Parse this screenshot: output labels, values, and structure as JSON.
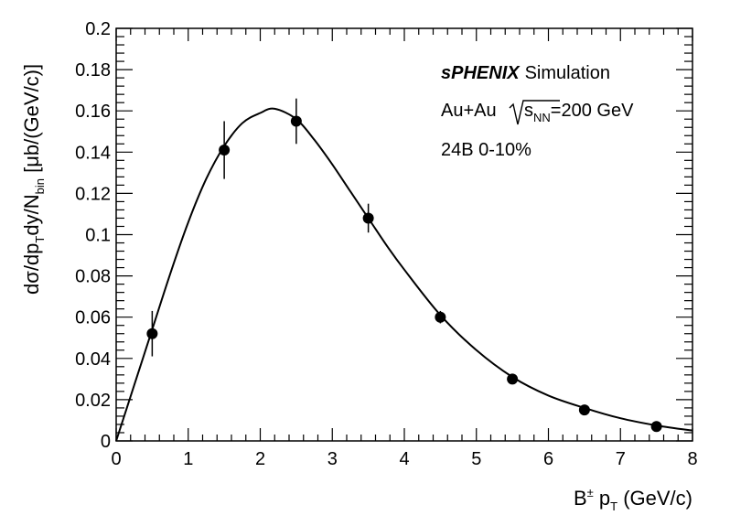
{
  "chart_data": {
    "type": "scatter",
    "x": [
      0.5,
      1.5,
      2.5,
      3.5,
      4.5,
      5.5,
      6.5,
      7.5
    ],
    "y": [
      0.052,
      0.141,
      0.155,
      0.108,
      0.06,
      0.03,
      0.015,
      0.007
    ],
    "y_err": [
      0.011,
      0.014,
      0.011,
      0.007,
      0.003,
      0.0015,
      0.001,
      0.0006
    ],
    "fit_curve": {
      "x": [
        0,
        0.25,
        0.5,
        0.75,
        1.0,
        1.25,
        1.5,
        1.75,
        2.0,
        2.2,
        2.5,
        2.75,
        3.0,
        3.25,
        3.5,
        3.75,
        4.0,
        4.5,
        5.0,
        5.5,
        6.0,
        6.5,
        7.0,
        7.5,
        8.0
      ],
      "y": [
        0.0,
        0.027,
        0.054,
        0.081,
        0.106,
        0.127,
        0.143,
        0.154,
        0.159,
        0.161,
        0.156,
        0.146,
        0.134,
        0.121,
        0.108,
        0.095,
        0.083,
        0.061,
        0.044,
        0.031,
        0.022,
        0.016,
        0.011,
        0.0075,
        0.005
      ]
    },
    "xlim": [
      0,
      8
    ],
    "ylim": [
      0,
      0.2
    ],
    "x_ticks": [
      "0",
      "1",
      "2",
      "3",
      "4",
      "5",
      "6",
      "7",
      "8"
    ],
    "y_ticks": [
      "0",
      "0.02",
      "0.04",
      "0.06",
      "0.08",
      "0.1",
      "0.12",
      "0.14",
      "0.16",
      "0.18",
      "0.2"
    ],
    "xlabel": {
      "base": "B",
      "sup": "±",
      "mid": " p",
      "sub": "T",
      "tail": " (GeV/c)"
    },
    "ylabel": {
      "p1": "dσ/dp",
      "s1": "T",
      "p2": "dy/N",
      "s2": "bin",
      "p3": " [μb/(GeV/c)]"
    },
    "annotations": {
      "brand": "sPHENIX",
      "brand_suffix": "Simulation",
      "system": "Au+Au",
      "energy_s": "s",
      "energy_sub": "NN",
      "energy_value": "=200 GeV",
      "sample": "24B 0-10%"
    },
    "grid": false,
    "legend": "top-right"
  }
}
